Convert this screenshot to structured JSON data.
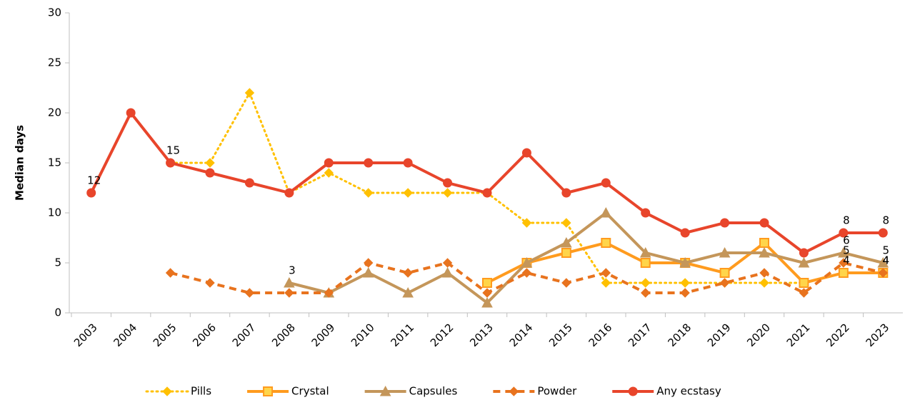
{
  "chart_data": {
    "type": "line",
    "y_label": "Median days",
    "categories": [
      "2003",
      "2004",
      "2005",
      "2006",
      "2007",
      "2008",
      "2009",
      "2010",
      "2011",
      "2012",
      "2013",
      "2014",
      "2015",
      "2016",
      "2017",
      "2018",
      "2019",
      "2020",
      "2021",
      "2022",
      "2023"
    ],
    "ylim": [
      0,
      30
    ],
    "yticks": [
      0,
      5,
      10,
      15,
      20,
      25,
      30
    ],
    "grid": false,
    "legend": "bottom",
    "series": [
      {
        "name": "Pills",
        "color": "#FFC000",
        "line_style": "dotted",
        "marker": "diamond",
        "values": [
          null,
          null,
          15,
          15,
          22,
          12,
          14,
          12,
          12,
          12,
          12,
          9,
          9,
          3,
          3,
          3,
          3,
          3,
          3,
          4,
          4
        ],
        "value_labels": [
          null,
          null,
          null,
          null,
          null,
          null,
          null,
          null,
          null,
          null,
          null,
          null,
          null,
          null,
          null,
          null,
          null,
          null,
          null,
          null,
          "4"
        ]
      },
      {
        "name": "Crystal",
        "color": "#FF9B1E",
        "line_style": "solid",
        "marker": "square",
        "values": [
          null,
          null,
          null,
          null,
          null,
          null,
          null,
          null,
          null,
          null,
          3,
          5,
          6,
          7,
          5,
          5,
          4,
          7,
          3,
          4,
          4
        ],
        "value_labels": [
          null,
          null,
          null,
          null,
          null,
          null,
          null,
          null,
          null,
          null,
          null,
          null,
          null,
          null,
          null,
          null,
          null,
          null,
          null,
          "4",
          "4"
        ]
      },
      {
        "name": "Capsules",
        "color": "#C4965A",
        "line_style": "solid",
        "marker": "triangle",
        "values": [
          null,
          null,
          null,
          null,
          null,
          3,
          2,
          4,
          2,
          4,
          1,
          5,
          7,
          10,
          6,
          5,
          6,
          6,
          5,
          6,
          5
        ],
        "value_labels": [
          null,
          null,
          null,
          null,
          null,
          "3",
          null,
          null,
          null,
          null,
          null,
          null,
          null,
          null,
          null,
          null,
          null,
          null,
          null,
          "6",
          "5"
        ]
      },
      {
        "name": "Powder",
        "color": "#E8731E",
        "line_style": "dashed",
        "marker": "diamond",
        "values": [
          null,
          null,
          4,
          3,
          2,
          2,
          2,
          5,
          4,
          5,
          2,
          4,
          3,
          4,
          2,
          2,
          3,
          4,
          2,
          5,
          4
        ],
        "value_labels": [
          null,
          null,
          null,
          null,
          null,
          null,
          null,
          null,
          null,
          null,
          null,
          null,
          null,
          null,
          null,
          null,
          null,
          null,
          null,
          "5",
          null
        ]
      },
      {
        "name": "Any ecstasy",
        "color": "#E8452B",
        "line_style": "solid",
        "marker": "circle",
        "values": [
          12,
          20,
          15,
          14,
          13,
          12,
          15,
          15,
          15,
          13,
          12,
          16,
          12,
          13,
          10,
          8,
          9,
          9,
          6,
          8,
          8
        ],
        "value_labels": [
          "12",
          null,
          "15",
          null,
          null,
          null,
          null,
          null,
          null,
          null,
          null,
          null,
          null,
          null,
          null,
          null,
          null,
          null,
          null,
          "8",
          "8"
        ]
      }
    ]
  }
}
